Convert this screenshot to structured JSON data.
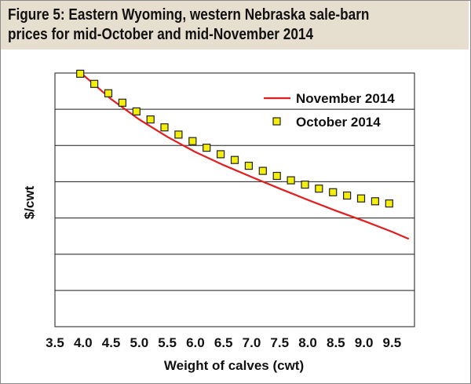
{
  "figure": {
    "title_line1": "Figure 5: Eastern Wyoming, western Nebraska sale-barn",
    "title_line2": "prices for mid-October and mid-November 2014"
  },
  "colors": {
    "title_band": "#e6dfcf",
    "november_line": "#e31d1d",
    "october_marker_fill": "#f4ef0a",
    "october_marker_edge": "#222222",
    "gridline": "#1a1a1a"
  },
  "chart_data": {
    "type": "line",
    "xlabel": "Weight of calves (cwt)",
    "ylabel": "$/cwt",
    "xlim": [
      3.5,
      9.9
    ],
    "x_ticks": [
      "3.5",
      "4.0",
      "4.5",
      "5.0",
      "5.5",
      "6.0",
      "6.5",
      "7.0",
      "7.5",
      "8.0",
      "8.5",
      "9.0",
      "9.5"
    ],
    "y_tick_labels": "none shown",
    "y_gridlines": 7,
    "legend_position": "top-right",
    "series": [
      {
        "name": "November 2014",
        "kind": "line",
        "x": [
          4.0,
          4.5,
          5.0,
          5.5,
          6.0,
          6.5,
          7.0,
          7.5,
          8.0,
          8.5,
          9.0,
          9.5,
          9.8
        ],
        "y": [
          6.95,
          6.28,
          5.72,
          5.24,
          4.82,
          4.46,
          4.13,
          3.81,
          3.5,
          3.2,
          2.92,
          2.62,
          2.42
        ]
      },
      {
        "name": "October 2014",
        "kind": "scatter",
        "x": [
          3.95,
          4.2,
          4.45,
          4.7,
          4.95,
          5.2,
          5.45,
          5.7,
          5.95,
          6.2,
          6.45,
          6.7,
          6.95,
          7.2,
          7.45,
          7.7,
          7.95,
          8.2,
          8.45,
          8.7,
          8.95,
          9.2,
          9.45
        ],
        "y": [
          6.98,
          6.7,
          6.44,
          6.18,
          5.94,
          5.72,
          5.5,
          5.3,
          5.12,
          4.94,
          4.76,
          4.6,
          4.44,
          4.3,
          4.16,
          4.04,
          3.92,
          3.81,
          3.71,
          3.62,
          3.54,
          3.46,
          3.4
        ]
      }
    ]
  }
}
